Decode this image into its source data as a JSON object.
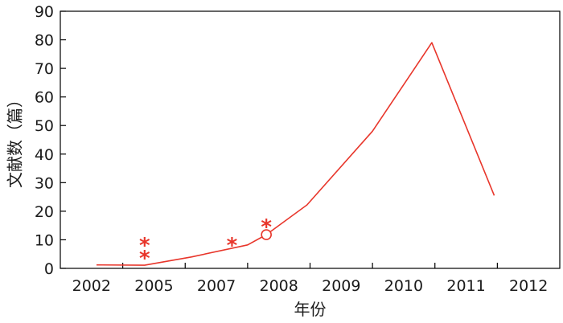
{
  "chart_data": {
    "type": "line",
    "title": "",
    "xlabel": "年份",
    "ylabel": "文献数（篇）",
    "categories": [
      "2002",
      "2005",
      "2007",
      "2008",
      "2009",
      "2010",
      "2011",
      "2012"
    ],
    "ylim": [
      0,
      90
    ],
    "yticks": [
      0,
      10,
      20,
      30,
      40,
      50,
      60,
      70,
      80,
      90
    ],
    "grid": false,
    "legend": "none",
    "series": [
      {
        "color": "#e8362b",
        "points": [
          {
            "x": 0.08,
            "y": 1.2
          },
          {
            "x": 0.85,
            "y": 1.1
          },
          {
            "x": 1.6,
            "y": 4.0
          },
          {
            "x": 2.5,
            "y": 8.2
          },
          {
            "x": 2.8,
            "y": 11.8
          },
          {
            "x": 3.45,
            "y": 22.2
          },
          {
            "x": 4.5,
            "y": 48.0
          },
          {
            "x": 5.45,
            "y": 79.0
          },
          {
            "x": 6.45,
            "y": 25.5
          }
        ]
      }
    ],
    "annotations": [
      {
        "text": "*",
        "x": 0.85,
        "y": 9.6
      },
      {
        "text": "*",
        "x": 0.85,
        "y": 5.1
      },
      {
        "text": "*",
        "x": 2.25,
        "y": 9.6
      },
      {
        "text": "*",
        "x": 2.8,
        "y": 16.0
      },
      {
        "text": "○",
        "x": 2.8,
        "y": 11.8
      }
    ]
  }
}
